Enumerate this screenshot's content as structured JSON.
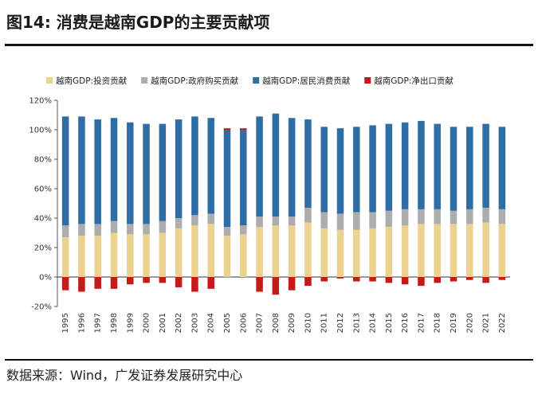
{
  "title": "图14:  消费是越南GDP的主要贡献项",
  "source": "数据来源：Wind，广发证券发展研究中心",
  "chart_data": {
    "type": "bar",
    "stacked": true,
    "categories": [
      "1995",
      "1996",
      "1997",
      "1998",
      "1999",
      "2000",
      "2001",
      "2002",
      "2003",
      "2004",
      "2005",
      "2006",
      "2007",
      "2008",
      "2009",
      "2010",
      "2011",
      "2012",
      "2013",
      "2014",
      "2015",
      "2016",
      "2017",
      "2018",
      "2019",
      "2020",
      "2021",
      "2022"
    ],
    "series": [
      {
        "name": "越南GDP:投资贡献",
        "color": "#ecd28f",
        "values": [
          27,
          28,
          28,
          30,
          29,
          29,
          30,
          33,
          35,
          36,
          28,
          29,
          34,
          35,
          35,
          37,
          33,
          32,
          32,
          33,
          34,
          35,
          36,
          36,
          36,
          36,
          37,
          36
        ]
      },
      {
        "name": "越南GDP:政府购买贡献",
        "color": "#adadad",
        "values": [
          8,
          8,
          8,
          8,
          7,
          7,
          8,
          7,
          7,
          7,
          6,
          6,
          7,
          6,
          6,
          10,
          11,
          11,
          12,
          11,
          11,
          11,
          10,
          10,
          9,
          10,
          10,
          10
        ]
      },
      {
        "name": "越南GDP:居民消费贡献",
        "color": "#2f6ea5",
        "values": [
          74,
          73,
          71,
          70,
          69,
          68,
          66,
          67,
          67,
          65,
          66,
          65,
          68,
          70,
          67,
          60,
          58,
          58,
          58,
          59,
          59,
          59,
          60,
          58,
          57,
          56,
          57,
          56
        ]
      },
      {
        "name": "越南GDP:净出口贡献",
        "color": "#c41a1a",
        "values": [
          -9,
          -10,
          -8,
          -8,
          -5,
          -4,
          -4,
          -7,
          -10,
          -8,
          1,
          1,
          -10,
          -12,
          -9,
          -6,
          -3,
          -1,
          -3,
          -3,
          -4,
          -5,
          -6,
          -4,
          -3,
          -2,
          -4,
          -2
        ]
      }
    ],
    "ylim": [
      -20,
      120
    ],
    "ytick_values": [
      -20,
      0,
      20,
      40,
      60,
      80,
      100,
      120
    ],
    "ytick_labels": [
      "-20%",
      "0%",
      "20%",
      "40%",
      "60%",
      "80%",
      "100%",
      "120%"
    ],
    "legend_position": "top",
    "grid": false
  }
}
